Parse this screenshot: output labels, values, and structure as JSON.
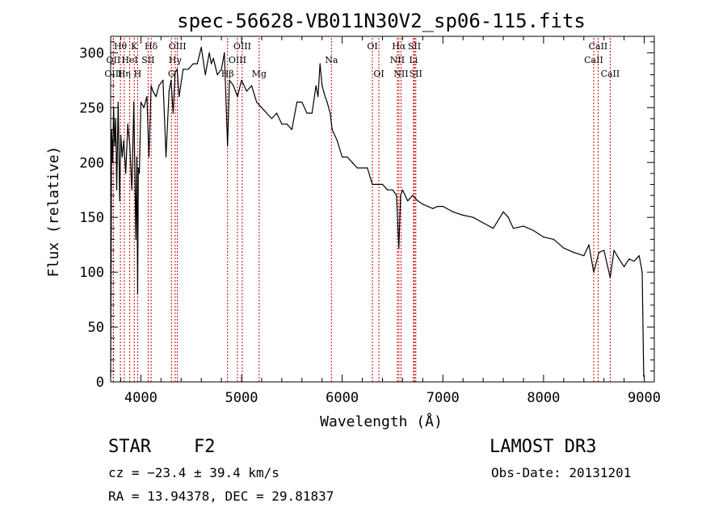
{
  "chart_data": {
    "type": "line",
    "title": "spec-56628-VB011N30V2_sp06-115.fits",
    "xlabel": "Wavelength (Å)",
    "ylabel": "Flux (relative)",
    "xlim": [
      3700,
      9100
    ],
    "ylim": [
      0,
      315
    ],
    "xticks": [
      4000,
      5000,
      6000,
      7000,
      8000,
      9000
    ],
    "yticks": [
      0,
      50,
      100,
      150,
      200,
      250,
      300
    ],
    "series": [
      {
        "name": "flux",
        "x": [
          3700,
          3710,
          3720,
          3730,
          3740,
          3750,
          3760,
          3775,
          3790,
          3800,
          3815,
          3830,
          3850,
          3870,
          3890,
          3910,
          3930,
          3950,
          3960,
          3968,
          3975,
          3985,
          4000,
          4030,
          4060,
          4080,
          4102,
          4120,
          4150,
          4180,
          4220,
          4250,
          4280,
          4300,
          4320,
          4340,
          4360,
          4380,
          4420,
          4470,
          4520,
          4560,
          4600,
          4640,
          4680,
          4700,
          4720,
          4760,
          4800,
          4830,
          4861,
          4880,
          4920,
          4960,
          5000,
          5050,
          5100,
          5150,
          5200,
          5250,
          5300,
          5350,
          5400,
          5450,
          5500,
          5550,
          5600,
          5650,
          5700,
          5740,
          5760,
          5780,
          5800,
          5830,
          5850,
          5880,
          5900,
          5950,
          6000,
          6050,
          6100,
          6150,
          6200,
          6250,
          6300,
          6350,
          6400,
          6450,
          6500,
          6540,
          6563,
          6580,
          6600,
          6650,
          6700,
          6750,
          6800,
          6850,
          6900,
          6950,
          7000,
          7100,
          7200,
          7300,
          7400,
          7500,
          7600,
          7650,
          7700,
          7800,
          7900,
          8000,
          8100,
          8200,
          8300,
          8400,
          8450,
          8498,
          8550,
          8600,
          8662,
          8700,
          8750,
          8800,
          8850,
          8900,
          8950,
          8980,
          8995
        ],
        "values": [
          5,
          230,
          200,
          250,
          215,
          240,
          175,
          255,
          165,
          225,
          205,
          220,
          190,
          235,
          215,
          175,
          255,
          130,
          205,
          80,
          195,
          190,
          255,
          250,
          260,
          205,
          270,
          265,
          260,
          270,
          275,
          205,
          265,
          275,
          245,
          282,
          285,
          260,
          285,
          285,
          290,
          290,
          305,
          280,
          300,
          290,
          295,
          280,
          285,
          300,
          215,
          275,
          270,
          260,
          275,
          265,
          270,
          255,
          250,
          245,
          240,
          245,
          235,
          235,
          230,
          255,
          255,
          245,
          245,
          270,
          260,
          290,
          270,
          260,
          255,
          245,
          230,
          220,
          205,
          205,
          200,
          195,
          195,
          195,
          180,
          180,
          180,
          175,
          175,
          170,
          122,
          170,
          175,
          165,
          170,
          165,
          162,
          160,
          158,
          160,
          160,
          155,
          152,
          150,
          145,
          140,
          155,
          150,
          140,
          142,
          138,
          132,
          130,
          122,
          118,
          115,
          125,
          100,
          118,
          120,
          95,
          120,
          112,
          105,
          112,
          110,
          115,
          100,
          5
        ]
      }
    ],
    "line_markers": [
      {
        "label": "Hθ",
        "x": 3797,
        "row": 0
      },
      {
        "label": "OII",
        "x": 3727,
        "row": 1
      },
      {
        "label": "OIII",
        "x": 3727,
        "row": 2
      },
      {
        "label": "K",
        "x": 3934,
        "row": 0
      },
      {
        "label": "HeI",
        "x": 3889,
        "row": 1
      },
      {
        "label": "Hη",
        "x": 3835,
        "row": 2
      },
      {
        "label": "Hδ",
        "x": 4102,
        "row": 0
      },
      {
        "label": "SII",
        "x": 4072,
        "row": 1
      },
      {
        "label": "H",
        "x": 3968,
        "row": 2
      },
      {
        "label": "OIII",
        "x": 4363,
        "row": 0
      },
      {
        "label": "Hγ",
        "x": 4341,
        "row": 1
      },
      {
        "label": "G",
        "x": 4304,
        "row": 2
      },
      {
        "label": "OIII",
        "x": 5007,
        "row": 0
      },
      {
        "label": "OIII",
        "x": 4959,
        "row": 1
      },
      {
        "label": "Hβ",
        "x": 4861,
        "row": 2
      },
      {
        "label": "Mg",
        "x": 5175,
        "row": 2
      },
      {
        "label": "Na",
        "x": 5893,
        "row": 1
      },
      {
        "label": "OI",
        "x": 6300,
        "row": 0
      },
      {
        "label": "OI",
        "x": 6364,
        "row": 2
      },
      {
        "label": "Hα",
        "x": 6563,
        "row": 0
      },
      {
        "label": "NII",
        "x": 6548,
        "row": 1
      },
      {
        "label": "NII",
        "x": 6584,
        "row": 2
      },
      {
        "label": "SII",
        "x": 6717,
        "row": 0
      },
      {
        "label": "Li",
        "x": 6708,
        "row": 1
      },
      {
        "label": "SII",
        "x": 6731,
        "row": 2
      },
      {
        "label": "CaII",
        "x": 8542,
        "row": 0
      },
      {
        "label": "CaII",
        "x": 8498,
        "row": 1
      },
      {
        "label": "CaII",
        "x": 8662,
        "row": 2
      }
    ]
  },
  "info": {
    "object_type": "STAR",
    "subclass": "F2",
    "survey": "LAMOST DR3",
    "redshift": "cz = −23.4 ± 39.4 km/s",
    "obs_date": "Obs-Date: 20131201",
    "coords": "RA =  13.94378, DEC =  29.81837"
  },
  "colors": {
    "line": "#000000",
    "marker": "#cc0000",
    "axis": "#000000",
    "background": "#ffffff"
  }
}
